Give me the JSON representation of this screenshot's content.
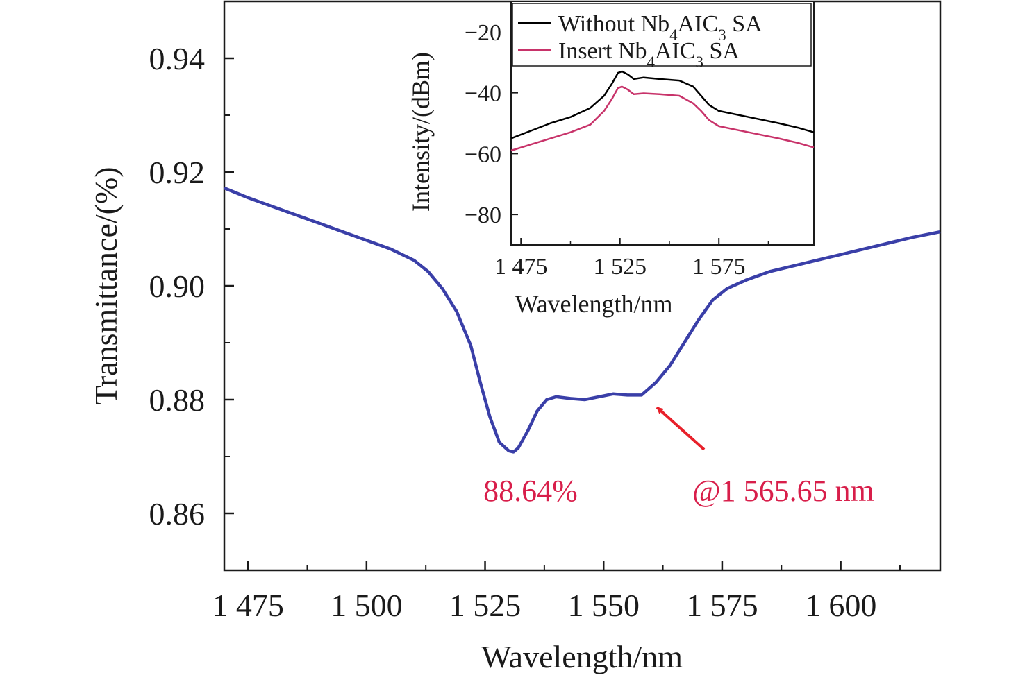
{
  "chart_data": [
    {
      "type": "line",
      "id": "main",
      "title": "",
      "xlabel": "Wavelength/nm",
      "ylabel": "Transmittance/(%)",
      "xlim": [
        1470,
        1621
      ],
      "ylim": [
        0.85,
        0.95
      ],
      "x_ticks": [
        1475,
        1500,
        1525,
        1550,
        1575,
        1600
      ],
      "x_tick_labels": [
        "1 475",
        "1 500",
        "1 525",
        "1 550",
        "1 575",
        "1 600"
      ],
      "y_ticks": [
        0.86,
        0.88,
        0.9,
        0.92,
        0.94
      ],
      "y_tick_labels": [
        "0.86",
        "0.88",
        "0.90",
        "0.92",
        "0.94"
      ],
      "grid": false,
      "series": [
        {
          "color": "#3a3fa8",
          "points": [
            [
              1470,
              0.9172
            ],
            [
              1475,
              0.9155
            ],
            [
              1480,
              0.914
            ],
            [
              1485,
              0.9125
            ],
            [
              1490,
              0.911
            ],
            [
              1495,
              0.9095
            ],
            [
              1500,
              0.908
            ],
            [
              1505,
              0.9065
            ],
            [
              1510,
              0.9045
            ],
            [
              1513,
              0.9025
            ],
            [
              1516,
              0.8995
            ],
            [
              1519,
              0.8955
            ],
            [
              1522,
              0.8895
            ],
            [
              1524,
              0.883
            ],
            [
              1526,
              0.877
            ],
            [
              1528,
              0.8725
            ],
            [
              1530,
              0.871
            ],
            [
              1531,
              0.8708
            ],
            [
              1532,
              0.8715
            ],
            [
              1534,
              0.8745
            ],
            [
              1536,
              0.878
            ],
            [
              1538,
              0.88
            ],
            [
              1540,
              0.8805
            ],
            [
              1543,
              0.8802
            ],
            [
              1546,
              0.88
            ],
            [
              1549,
              0.8805
            ],
            [
              1552,
              0.881
            ],
            [
              1555,
              0.8808
            ],
            [
              1558,
              0.8808
            ],
            [
              1561,
              0.883
            ],
            [
              1564,
              0.886
            ],
            [
              1567,
              0.89
            ],
            [
              1570,
              0.894
            ],
            [
              1573,
              0.8975
            ],
            [
              1576,
              0.8995
            ],
            [
              1580,
              0.901
            ],
            [
              1585,
              0.9025
            ],
            [
              1590,
              0.9035
            ],
            [
              1595,
              0.9045
            ],
            [
              1600,
              0.9055
            ],
            [
              1605,
              0.9065
            ],
            [
              1610,
              0.9075
            ],
            [
              1615,
              0.9085
            ],
            [
              1621,
              0.9095
            ]
          ]
        }
      ],
      "annotations": [
        {
          "text": "88.64%",
          "x": 1531,
          "y": 0.8708
        },
        {
          "text": "@1 565.65 nm",
          "x": 1558,
          "y": 0.8808
        }
      ]
    },
    {
      "type": "line",
      "id": "inset",
      "title": "",
      "xlabel": "Wavelength/nm",
      "ylabel": "Intensity/(dBm)",
      "xlim": [
        1470,
        1623
      ],
      "ylim": [
        -90,
        -10
      ],
      "x_ticks": [
        1475,
        1525,
        1575
      ],
      "x_tick_labels": [
        "1 475",
        "1 525",
        "1 575"
      ],
      "y_ticks": [
        -80,
        -60,
        -40,
        -20
      ],
      "y_tick_labels": [
        "−80",
        "−60",
        "−40",
        "−20"
      ],
      "grid": false,
      "legend": {
        "placement": "top",
        "entries": [
          {
            "prefix": "Without Nb",
            "sub1": "4",
            "mid": "AIC",
            "sub2": "3",
            "suffix": " SA",
            "color": "#000000"
          },
          {
            "prefix": "Insert Nb",
            "sub1": "4",
            "mid": "AIC",
            "sub2": "3",
            "suffix": " SA",
            "color": "#c8336a"
          }
        ]
      },
      "series": [
        {
          "name": "Without Nb4AIC3 SA",
          "color": "#000000",
          "points": [
            [
              1470,
              -55
            ],
            [
              1480,
              -52.5
            ],
            [
              1490,
              -50
            ],
            [
              1500,
              -48
            ],
            [
              1510,
              -45
            ],
            [
              1517,
              -41
            ],
            [
              1521,
              -37
            ],
            [
              1524,
              -33.5
            ],
            [
              1526,
              -33
            ],
            [
              1529,
              -34
            ],
            [
              1532,
              -35.5
            ],
            [
              1537,
              -35
            ],
            [
              1545,
              -35.5
            ],
            [
              1555,
              -36
            ],
            [
              1562,
              -38
            ],
            [
              1566,
              -41
            ],
            [
              1570,
              -44
            ],
            [
              1575,
              -46
            ],
            [
              1590,
              -48
            ],
            [
              1605,
              -50
            ],
            [
              1615,
              -51.5
            ],
            [
              1623,
              -53
            ]
          ]
        },
        {
          "name": "Insert Nb4AIC3 SA",
          "color": "#c8336a",
          "points": [
            [
              1470,
              -59
            ],
            [
              1480,
              -57
            ],
            [
              1490,
              -55
            ],
            [
              1500,
              -53
            ],
            [
              1510,
              -50.5
            ],
            [
              1517,
              -46
            ],
            [
              1521,
              -42
            ],
            [
              1524,
              -38.5
            ],
            [
              1526,
              -38
            ],
            [
              1529,
              -39
            ],
            [
              1532,
              -40.5
            ],
            [
              1537,
              -40.2
            ],
            [
              1545,
              -40.5
            ],
            [
              1555,
              -41
            ],
            [
              1562,
              -43.5
            ],
            [
              1566,
              -46
            ],
            [
              1570,
              -49
            ],
            [
              1575,
              -51
            ],
            [
              1590,
              -53
            ],
            [
              1605,
              -55
            ],
            [
              1615,
              -56.5
            ],
            [
              1623,
              -58
            ]
          ]
        }
      ]
    }
  ]
}
